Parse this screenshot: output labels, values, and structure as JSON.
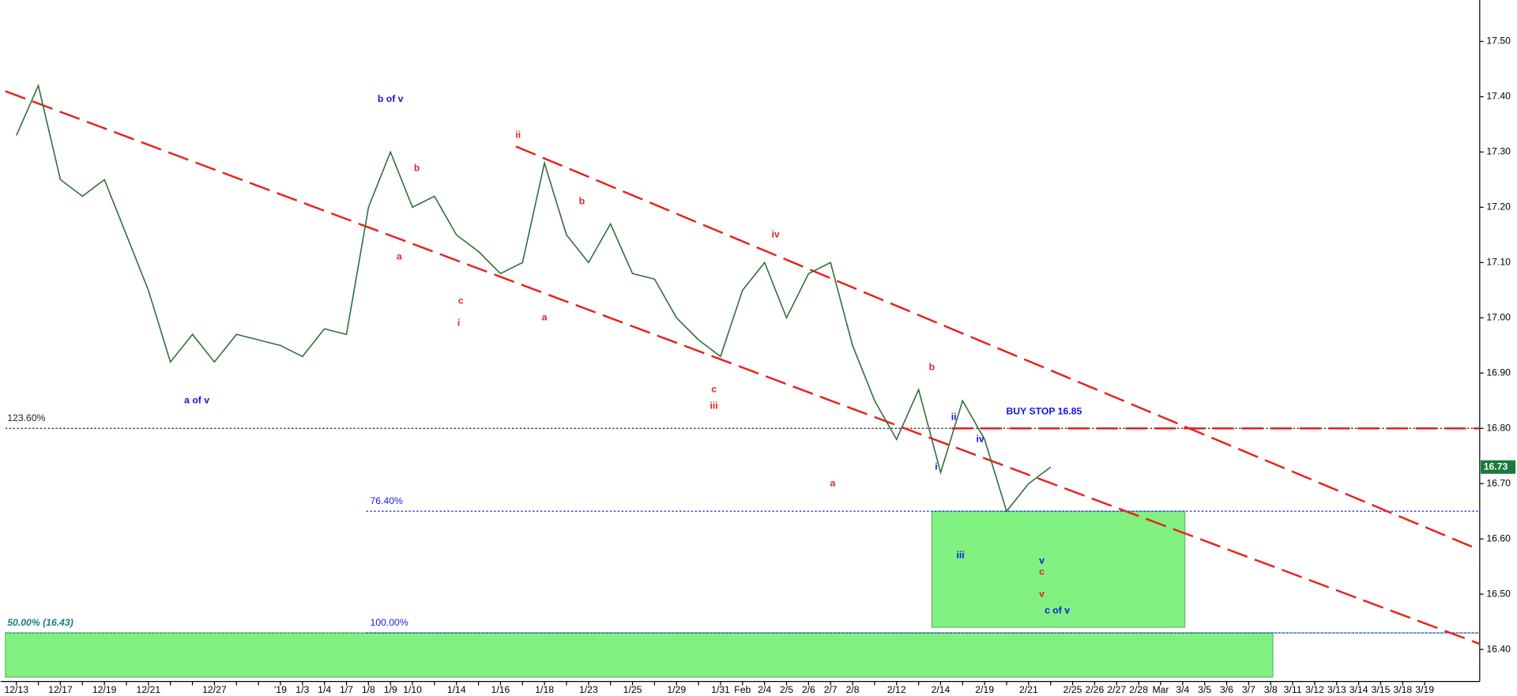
{
  "chart_data": {
    "type": "line",
    "x": [
      "12/13",
      null,
      "12/17",
      null,
      "12/19",
      null,
      "12/21",
      null,
      null,
      "12/27",
      null,
      null,
      "'19",
      "1/3",
      "1/4",
      "1/7",
      "1/8",
      "1/9",
      "1/10",
      null,
      "1/14",
      null,
      "1/16",
      null,
      "1/18",
      null,
      "1/23",
      null,
      "1/25",
      null,
      "1/29",
      null,
      "1/31",
      "Feb",
      "2/4",
      "2/5",
      "2/6",
      "2/7",
      "2/8",
      null,
      "2/12",
      null,
      "2/14",
      null,
      "2/19",
      null,
      "2/21",
      null,
      "2/25",
      "2/26",
      "2/27",
      "2/28",
      "Mar",
      "3/4",
      "3/5",
      "3/6",
      "3/7",
      "3/8",
      "3/11",
      "3/12",
      "3/13",
      "3/14",
      "3/15",
      "3/18",
      "3/19"
    ],
    "values": [
      17.33,
      17.42,
      17.25,
      17.22,
      17.25,
      17.15,
      17.05,
      16.92,
      16.97,
      16.92,
      16.97,
      16.96,
      16.95,
      16.93,
      16.98,
      16.97,
      17.2,
      17.3,
      17.2,
      17.22,
      17.15,
      17.12,
      17.08,
      17.1,
      17.28,
      17.15,
      17.1,
      17.17,
      17.08,
      17.07,
      17.0,
      16.96,
      16.93,
      17.05,
      17.1,
      17.0,
      17.08,
      17.1,
      16.95,
      16.85,
      16.78,
      16.87,
      16.72,
      16.85,
      16.78,
      16.65,
      16.7,
      16.73,
      null,
      null,
      null,
      null,
      null,
      null,
      null,
      null,
      null,
      null,
      null,
      null,
      null,
      null,
      null,
      null,
      null
    ],
    "color": "#2f6f3a",
    "last_value": 16.73,
    "xlim": [
      -0.5,
      66.5
    ],
    "ylim": [
      16.342,
      17.575
    ],
    "yticks": [
      {
        "value": 16.4,
        "label": "16.40"
      },
      {
        "value": 16.5,
        "label": "16.50"
      },
      {
        "value": 16.6,
        "label": "16.60"
      },
      {
        "value": 16.7,
        "label": "16.70"
      },
      {
        "value": 16.8,
        "label": "16.80"
      },
      {
        "value": 16.9,
        "label": "16.90"
      },
      {
        "value": 17.0,
        "label": "17.00"
      },
      {
        "value": 17.1,
        "label": "17.10"
      },
      {
        "value": 17.2,
        "label": "17.20"
      },
      {
        "value": 17.3,
        "label": "17.30"
      },
      {
        "value": 17.4,
        "label": "17.40"
      },
      {
        "value": 17.5,
        "label": "17.50"
      }
    ],
    "trendlines": [
      {
        "x": [
          -0.5,
          66.5
        ],
        "y": [
          17.41,
          16.41
        ],
        "color": "#e8201c"
      },
      {
        "x": [
          22.7,
          66.5
        ],
        "y": [
          17.31,
          16.58
        ],
        "color": "#e8201c"
      },
      {
        "x": [
          42.5,
          66.5
        ],
        "y": [
          16.8,
          16.8
        ],
        "color": "#e8201c"
      }
    ],
    "levels": [
      {
        "label": "123.60%",
        "value": 16.8,
        "start": -0.5,
        "color": "#222222"
      },
      {
        "label": "76.40%",
        "value": 16.65,
        "start": 15.9,
        "color": "#1a1aee"
      },
      {
        "label": "100.00%",
        "value": 16.43,
        "start": 15.9,
        "color": "#1a1aee"
      },
      {
        "label": "50.00% (16.43)",
        "value": 16.43,
        "start": -0.5,
        "color": "#1a8080"
      }
    ],
    "zones": [
      {
        "x": [
          41.6,
          53.1
        ],
        "y": [
          16.44,
          16.65
        ],
        "color": "#80f080"
      },
      {
        "x": [
          -0.5,
          57.1
        ],
        "y": [
          16.35,
          16.43
        ],
        "color": "#80f080"
      }
    ],
    "annotations": [
      {
        "text": "b of v",
        "x": 17.0,
        "y": 17.395,
        "color": "#1414e6",
        "style": "large"
      },
      {
        "text": "a of v",
        "x": 8.2,
        "y": 16.85,
        "color": "#1414e6",
        "style": "large"
      },
      {
        "text": "b",
        "x": 18.2,
        "y": 17.27,
        "color": "#e8201c",
        "style": "small"
      },
      {
        "text": "a",
        "x": 17.4,
        "y": 17.11,
        "color": "#e8201c",
        "style": "small"
      },
      {
        "text": "c",
        "x": 20.2,
        "y": 17.03,
        "color": "#e8201c",
        "style": "small"
      },
      {
        "text": "i",
        "x": 20.1,
        "y": 16.99,
        "color": "#e8201c",
        "style": "small"
      },
      {
        "text": "ii",
        "x": 22.8,
        "y": 17.33,
        "color": "#e8201c",
        "style": "small"
      },
      {
        "text": "b",
        "x": 25.7,
        "y": 17.21,
        "color": "#e8201c",
        "style": "small"
      },
      {
        "text": "a",
        "x": 24.0,
        "y": 17.0,
        "color": "#e8201c",
        "style": "small"
      },
      {
        "text": "iv",
        "x": 34.5,
        "y": 17.15,
        "color": "#e8201c",
        "style": "small"
      },
      {
        "text": "c",
        "x": 31.7,
        "y": 16.87,
        "color": "#e8201c",
        "style": "small"
      },
      {
        "text": "iii",
        "x": 31.7,
        "y": 16.84,
        "color": "#e8201c",
        "style": "small"
      },
      {
        "text": "a",
        "x": 37.1,
        "y": 16.7,
        "color": "#e8201c",
        "style": "small"
      },
      {
        "text": "b",
        "x": 41.6,
        "y": 16.91,
        "color": "#e8201c",
        "style": "small"
      },
      {
        "text": "ii",
        "x": 42.6,
        "y": 16.82,
        "color": "#1414e6",
        "style": "small"
      },
      {
        "text": "i",
        "x": 41.8,
        "y": 16.73,
        "color": "#1414e6",
        "style": "small"
      },
      {
        "text": "iv",
        "x": 43.8,
        "y": 16.78,
        "color": "#1414e6",
        "style": "small"
      },
      {
        "text": "iii",
        "x": 42.9,
        "y": 16.57,
        "color": "#1414e6",
        "style": "small"
      },
      {
        "text": "v",
        "x": 46.6,
        "y": 16.56,
        "color": "#1414e6",
        "style": "small"
      },
      {
        "text": "c",
        "x": 46.6,
        "y": 16.54,
        "color": "#e8201c",
        "style": "small"
      },
      {
        "text": "v",
        "x": 46.6,
        "y": 16.5,
        "color": "#e8201c",
        "style": "small"
      },
      {
        "text": "c of v",
        "x": 47.3,
        "y": 16.47,
        "color": "#1414e6",
        "style": "large"
      },
      {
        "text": "BUY STOP 16.85",
        "x": 46.7,
        "y": 16.83,
        "color": "#1414e6",
        "style": "small"
      }
    ]
  }
}
